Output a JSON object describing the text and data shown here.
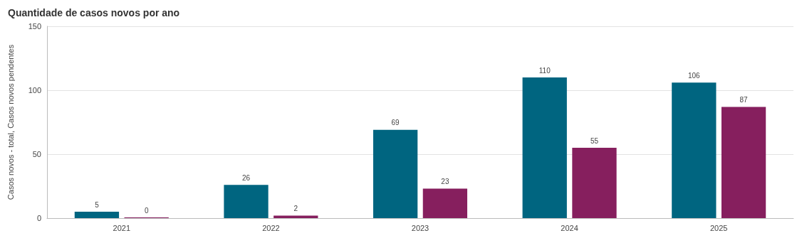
{
  "chart_data": {
    "type": "bar",
    "title": "Quantidade de casos novos por ano",
    "ylabel": "Casos novos - total, Casos novos pendentes",
    "categories": [
      "2021",
      "2022",
      "2023",
      "2024",
      "2025"
    ],
    "series": [
      {
        "color": "#006580",
        "values": [
          5,
          26,
          69,
          110,
          106
        ]
      },
      {
        "color": "#861f5e",
        "values": [
          0,
          2,
          23,
          55,
          87
        ]
      }
    ],
    "ylim": [
      0,
      150
    ],
    "yticks": [
      0,
      50,
      100,
      150
    ],
    "grid": "y",
    "data_labels": true
  }
}
